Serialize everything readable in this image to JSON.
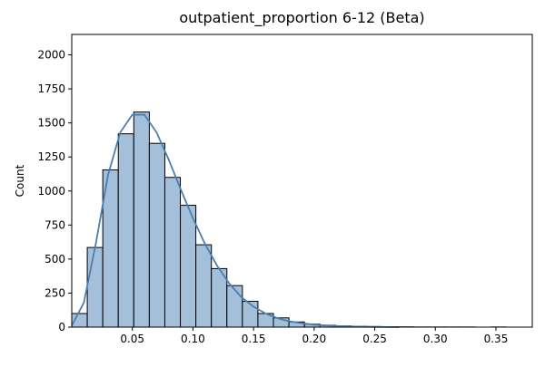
{
  "chart_data": {
    "type": "bar",
    "title": "outpatient_proportion 6-12 (Beta)",
    "xlabel": "",
    "ylabel": "Count",
    "xlim": [
      0.0,
      0.38
    ],
    "ylim": [
      0,
      2150
    ],
    "x_ticks": [
      0.05,
      0.1,
      0.15,
      0.2,
      0.25,
      0.3,
      0.35
    ],
    "x_tick_labels": [
      "0.05",
      "0.10",
      "0.15",
      "0.20",
      "0.25",
      "0.30",
      "0.35"
    ],
    "y_ticks": [
      0,
      250,
      500,
      750,
      1000,
      1250,
      1500,
      1750,
      2000
    ],
    "y_tick_labels": [
      "0",
      "250",
      "500",
      "750",
      "1000",
      "1250",
      "1500",
      "1750",
      "2000"
    ],
    "bin_width": 0.0128,
    "bins": [
      {
        "x0": 0.0,
        "count": 100
      },
      {
        "x0": 0.0128,
        "count": 585
      },
      {
        "x0": 0.0256,
        "count": 1155
      },
      {
        "x0": 0.0384,
        "count": 1420
      },
      {
        "x0": 0.0512,
        "count": 1580
      },
      {
        "x0": 0.064,
        "count": 1350
      },
      {
        "x0": 0.0768,
        "count": 1100
      },
      {
        "x0": 0.0896,
        "count": 895
      },
      {
        "x0": 0.1024,
        "count": 605
      },
      {
        "x0": 0.1152,
        "count": 430
      },
      {
        "x0": 0.128,
        "count": 305
      },
      {
        "x0": 0.1408,
        "count": 190
      },
      {
        "x0": 0.1536,
        "count": 100
      },
      {
        "x0": 0.1664,
        "count": 68
      },
      {
        "x0": 0.1792,
        "count": 38
      },
      {
        "x0": 0.192,
        "count": 22
      },
      {
        "x0": 0.2048,
        "count": 14
      },
      {
        "x0": 0.2176,
        "count": 9
      },
      {
        "x0": 0.2304,
        "count": 6
      },
      {
        "x0": 0.2432,
        "count": 4
      },
      {
        "x0": 0.256,
        "count": 3
      },
      {
        "x0": 0.2688,
        "count": 2
      },
      {
        "x0": 0.2816,
        "count": 1
      },
      {
        "x0": 0.2944,
        "count": 1
      },
      {
        "x0": 0.3072,
        "count": 1
      },
      {
        "x0": 0.32,
        "count": 1
      },
      {
        "x0": 0.3328,
        "count": 0
      },
      {
        "x0": 0.3456,
        "count": 1
      },
      {
        "x0": 0.3584,
        "count": 0
      }
    ],
    "kde": {
      "x": [
        0.0,
        0.01,
        0.02,
        0.03,
        0.04,
        0.05,
        0.06,
        0.07,
        0.08,
        0.09,
        0.1,
        0.11,
        0.12,
        0.13,
        0.14,
        0.15,
        0.16,
        0.17,
        0.18,
        0.19,
        0.2,
        0.21,
        0.22,
        0.23,
        0.24,
        0.25,
        0.26,
        0.27
      ],
      "y": [
        10,
        180,
        620,
        1120,
        1430,
        1560,
        1560,
        1430,
        1230,
        1010,
        800,
        610,
        450,
        320,
        220,
        150,
        100,
        65,
        42,
        28,
        18,
        12,
        8,
        5,
        3,
        2,
        1,
        0
      ]
    },
    "colors": {
      "bar_fill": "#a3bfd9",
      "bar_edge": "#000000",
      "kde_line": "#4a7fb0"
    },
    "grid": false,
    "legend": "none"
  }
}
